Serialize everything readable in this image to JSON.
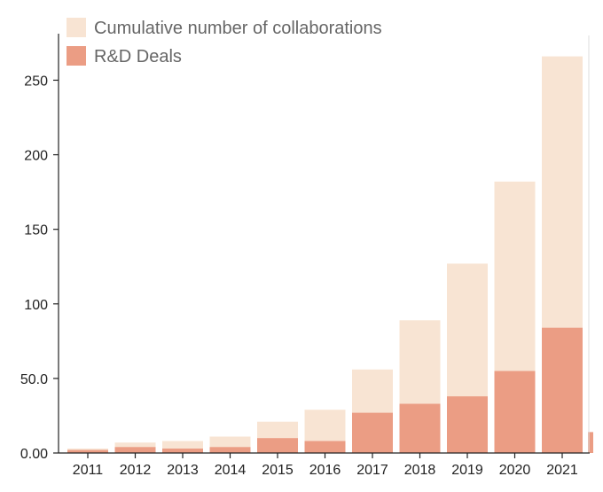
{
  "chart_data": {
    "type": "bar",
    "stacking": "overlay",
    "categories": [
      "2011",
      "2012",
      "2013",
      "2014",
      "2015",
      "2016",
      "2017",
      "2018",
      "2019",
      "2020",
      "2021"
    ],
    "series": [
      {
        "name": "Cumulative number of collaborations",
        "values": [
          3,
          7,
          8,
          11,
          21,
          29,
          56,
          89,
          127,
          182,
          266
        ],
        "color": "#f8e4d3"
      },
      {
        "name": "R&D Deals",
        "values": [
          2,
          4,
          3,
          4,
          10,
          8,
          27,
          33,
          38,
          55,
          84
        ],
        "color": "#eb9d84"
      }
    ],
    "yticks": [
      "0.00",
      "50.0",
      "100",
      "150",
      "200",
      "250"
    ],
    "ylim": [
      0,
      280
    ],
    "xlabel": "",
    "ylabel": "",
    "legend_position": "top-left",
    "grid": false,
    "title": ""
  }
}
